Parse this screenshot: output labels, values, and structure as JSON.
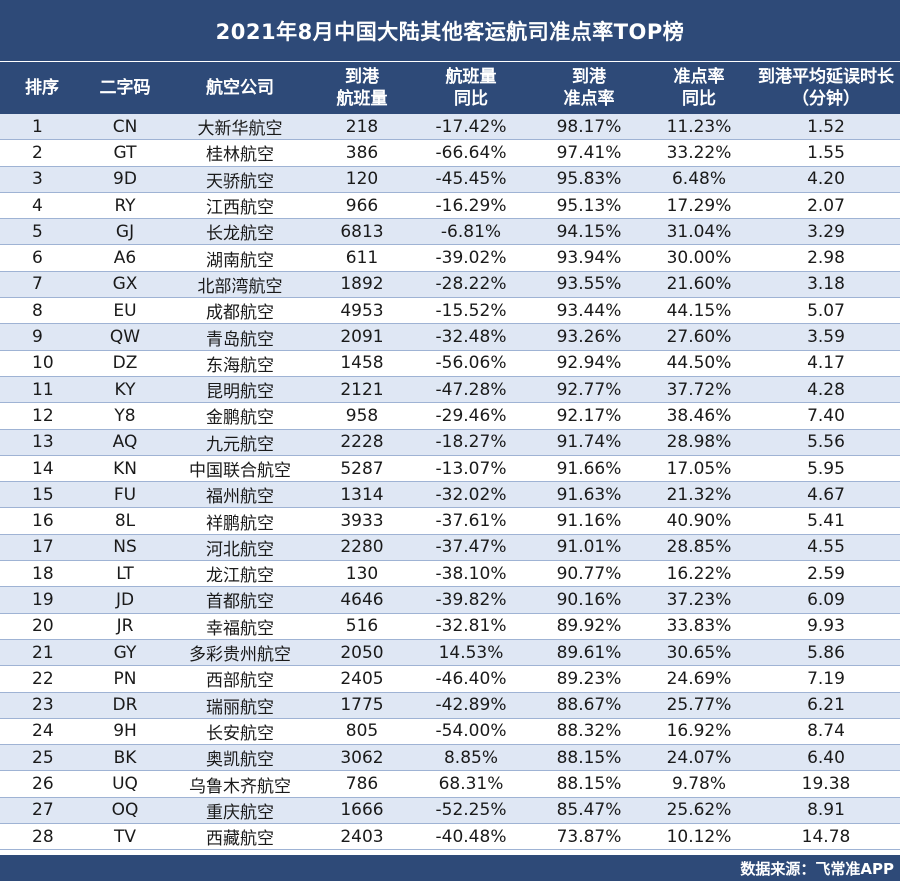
{
  "title": "2021年8月中国大陆其他客运航司准点率TOP榜",
  "headers": {
    "rank": [
      "排序"
    ],
    "code": [
      "二字码"
    ],
    "name": [
      "航空公司"
    ],
    "flights": [
      "到港",
      "航班量"
    ],
    "yoy": [
      "航班量",
      "同比"
    ],
    "otp": [
      "到港",
      "准点率"
    ],
    "otpyoy": [
      "准点率",
      "同比"
    ],
    "delay": [
      "到港平均延误时长",
      "（分钟）"
    ]
  },
  "rows": [
    {
      "rank": "1",
      "code": "CN",
      "name": "大新华航空",
      "flights": "218",
      "yoy": "-17.42%",
      "otp": "98.17%",
      "otpyoy": "11.23%",
      "delay": "1.52"
    },
    {
      "rank": "2",
      "code": "GT",
      "name": "桂林航空",
      "flights": "386",
      "yoy": "-66.64%",
      "otp": "97.41%",
      "otpyoy": "33.22%",
      "delay": "1.55"
    },
    {
      "rank": "3",
      "code": "9D",
      "name": "天骄航空",
      "flights": "120",
      "yoy": "-45.45%",
      "otp": "95.83%",
      "otpyoy": "6.48%",
      "delay": "4.20"
    },
    {
      "rank": "4",
      "code": "RY",
      "name": "江西航空",
      "flights": "966",
      "yoy": "-16.29%",
      "otp": "95.13%",
      "otpyoy": "17.29%",
      "delay": "2.07"
    },
    {
      "rank": "5",
      "code": "GJ",
      "name": "长龙航空",
      "flights": "6813",
      "yoy": "-6.81%",
      "otp": "94.15%",
      "otpyoy": "31.04%",
      "delay": "3.29"
    },
    {
      "rank": "6",
      "code": "A6",
      "name": "湖南航空",
      "flights": "611",
      "yoy": "-39.02%",
      "otp": "93.94%",
      "otpyoy": "30.00%",
      "delay": "2.98"
    },
    {
      "rank": "7",
      "code": "GX",
      "name": "北部湾航空",
      "flights": "1892",
      "yoy": "-28.22%",
      "otp": "93.55%",
      "otpyoy": "21.60%",
      "delay": "3.18"
    },
    {
      "rank": "8",
      "code": "EU",
      "name": "成都航空",
      "flights": "4953",
      "yoy": "-15.52%",
      "otp": "93.44%",
      "otpyoy": "44.15%",
      "delay": "5.07"
    },
    {
      "rank": "9",
      "code": "QW",
      "name": "青岛航空",
      "flights": "2091",
      "yoy": "-32.48%",
      "otp": "93.26%",
      "otpyoy": "27.60%",
      "delay": "3.59"
    },
    {
      "rank": "10",
      "code": "DZ",
      "name": "东海航空",
      "flights": "1458",
      "yoy": "-56.06%",
      "otp": "92.94%",
      "otpyoy": "44.50%",
      "delay": "4.17"
    },
    {
      "rank": "11",
      "code": "KY",
      "name": "昆明航空",
      "flights": "2121",
      "yoy": "-47.28%",
      "otp": "92.77%",
      "otpyoy": "37.72%",
      "delay": "4.28"
    },
    {
      "rank": "12",
      "code": "Y8",
      "name": "金鹏航空",
      "flights": "958",
      "yoy": "-29.46%",
      "otp": "92.17%",
      "otpyoy": "38.46%",
      "delay": "7.40"
    },
    {
      "rank": "13",
      "code": "AQ",
      "name": "九元航空",
      "flights": "2228",
      "yoy": "-18.27%",
      "otp": "91.74%",
      "otpyoy": "28.98%",
      "delay": "5.56"
    },
    {
      "rank": "14",
      "code": "KN",
      "name": "中国联合航空",
      "flights": "5287",
      "yoy": "-13.07%",
      "otp": "91.66%",
      "otpyoy": "17.05%",
      "delay": "5.95"
    },
    {
      "rank": "15",
      "code": "FU",
      "name": "福州航空",
      "flights": "1314",
      "yoy": "-32.02%",
      "otp": "91.63%",
      "otpyoy": "21.32%",
      "delay": "4.67"
    },
    {
      "rank": "16",
      "code": "8L",
      "name": "祥鹏航空",
      "flights": "3933",
      "yoy": "-37.61%",
      "otp": "91.16%",
      "otpyoy": "40.90%",
      "delay": "5.41"
    },
    {
      "rank": "17",
      "code": "NS",
      "name": "河北航空",
      "flights": "2280",
      "yoy": "-37.47%",
      "otp": "91.01%",
      "otpyoy": "28.85%",
      "delay": "4.55"
    },
    {
      "rank": "18",
      "code": "LT",
      "name": "龙江航空",
      "flights": "130",
      "yoy": "-38.10%",
      "otp": "90.77%",
      "otpyoy": "16.22%",
      "delay": "2.59"
    },
    {
      "rank": "19",
      "code": "JD",
      "name": "首都航空",
      "flights": "4646",
      "yoy": "-39.82%",
      "otp": "90.16%",
      "otpyoy": "37.23%",
      "delay": "6.09"
    },
    {
      "rank": "20",
      "code": "JR",
      "name": "幸福航空",
      "flights": "516",
      "yoy": "-32.81%",
      "otp": "89.92%",
      "otpyoy": "33.83%",
      "delay": "9.93"
    },
    {
      "rank": "21",
      "code": "GY",
      "name": "多彩贵州航空",
      "flights": "2050",
      "yoy": "14.53%",
      "otp": "89.61%",
      "otpyoy": "30.65%",
      "delay": "5.86"
    },
    {
      "rank": "22",
      "code": "PN",
      "name": "西部航空",
      "flights": "2405",
      "yoy": "-46.40%",
      "otp": "89.23%",
      "otpyoy": "24.69%",
      "delay": "7.19"
    },
    {
      "rank": "23",
      "code": "DR",
      "name": "瑞丽航空",
      "flights": "1775",
      "yoy": "-42.89%",
      "otp": "88.67%",
      "otpyoy": "25.77%",
      "delay": "6.21"
    },
    {
      "rank": "24",
      "code": "9H",
      "name": "长安航空",
      "flights": "805",
      "yoy": "-54.00%",
      "otp": "88.32%",
      "otpyoy": "16.92%",
      "delay": "8.74"
    },
    {
      "rank": "25",
      "code": "BK",
      "name": "奥凯航空",
      "flights": "3062",
      "yoy": "8.85%",
      "otp": "88.15%",
      "otpyoy": "24.07%",
      "delay": "6.40"
    },
    {
      "rank": "26",
      "code": "UQ",
      "name": "乌鲁木齐航空",
      "flights": "786",
      "yoy": "68.31%",
      "otp": "88.15%",
      "otpyoy": "9.78%",
      "delay": "19.38"
    },
    {
      "rank": "27",
      "code": "OQ",
      "name": "重庆航空",
      "flights": "1666",
      "yoy": "-52.25%",
      "otp": "85.47%",
      "otpyoy": "25.62%",
      "delay": "8.91"
    },
    {
      "rank": "28",
      "code": "TV",
      "name": "西藏航空",
      "flights": "2403",
      "yoy": "-40.48%",
      "otp": "73.87%",
      "otpyoy": "10.12%",
      "delay": "14.78"
    }
  ],
  "footer": "数据来源：飞常准APP"
}
